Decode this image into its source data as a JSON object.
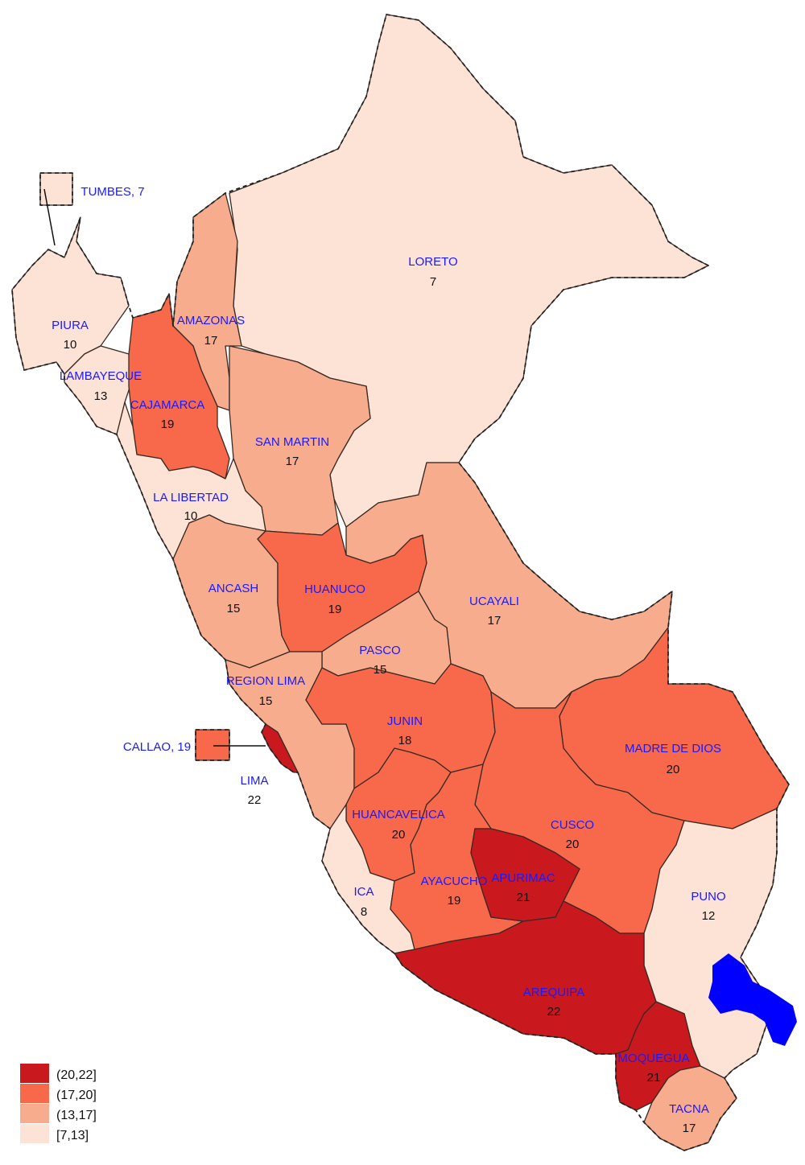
{
  "legend": {
    "classes": [
      {
        "label": "(20,22]",
        "color": "#c9181e"
      },
      {
        "label": "(17,20]",
        "color": "#f7694a"
      },
      {
        "label": "(13,17]",
        "color": "#f7ac8e"
      },
      {
        "label": "[7,13]",
        "color": "#fde2d6"
      }
    ]
  },
  "regions": [
    {
      "name": "TUMBES",
      "label": "TUMBES, 7",
      "value": 7
    },
    {
      "name": "LORETO",
      "label": "LORETO",
      "value": 7
    },
    {
      "name": "PIURA",
      "label": "PIURA",
      "value": 10
    },
    {
      "name": "AMAZONAS",
      "label": "AMAZONAS",
      "value": 17
    },
    {
      "name": "LAMBAYEQUE",
      "label": "LAMBAYEQUE",
      "value": 13
    },
    {
      "name": "CAJAMARCA",
      "label": "CAJAMARCA",
      "value": 19
    },
    {
      "name": "SAN MARTIN",
      "label": "SAN MARTIN",
      "value": 17
    },
    {
      "name": "LA LIBERTAD",
      "label": "LA LIBERTAD",
      "value": 10
    },
    {
      "name": "ANCASH",
      "label": "ANCASH",
      "value": 15
    },
    {
      "name": "HUANUCO",
      "label": "HUANUCO",
      "value": 19
    },
    {
      "name": "UCAYALI",
      "label": "UCAYALI",
      "value": 17
    },
    {
      "name": "PASCO",
      "label": "PASCO",
      "value": 15
    },
    {
      "name": "REGION LIMA",
      "label": "REGION LIMA",
      "value": 15
    },
    {
      "name": "JUNIN",
      "label": "JUNIN",
      "value": 18
    },
    {
      "name": "CALLAO",
      "label": "CALLAO, 19",
      "value": 19
    },
    {
      "name": "MADRE DE DIOS",
      "label": "MADRE DE DIOS",
      "value": 20
    },
    {
      "name": "LIMA",
      "label": "LIMA",
      "value": 22
    },
    {
      "name": "HUANCAVELICA",
      "label": "HUANCAVELICA",
      "value": 20
    },
    {
      "name": "CUSCO",
      "label": "CUSCO",
      "value": 20
    },
    {
      "name": "ICA",
      "label": "ICA",
      "value": 8
    },
    {
      "name": "AYACUCHO",
      "label": "AYACUCHO",
      "value": 19
    },
    {
      "name": "APURIMAC",
      "label": "APURIMAC",
      "value": 21
    },
    {
      "name": "PUNO",
      "label": "PUNO",
      "value": 12
    },
    {
      "name": "AREQUIPA",
      "label": "AREQUIPA",
      "value": 22
    },
    {
      "name": "MOQUEGUA",
      "label": "MOQUEGUA",
      "value": 21
    },
    {
      "name": "TACNA",
      "label": "TACNA",
      "value": 17
    }
  ],
  "colors": {
    "lake": "#0000ff",
    "region_label": "#1a1aff"
  }
}
